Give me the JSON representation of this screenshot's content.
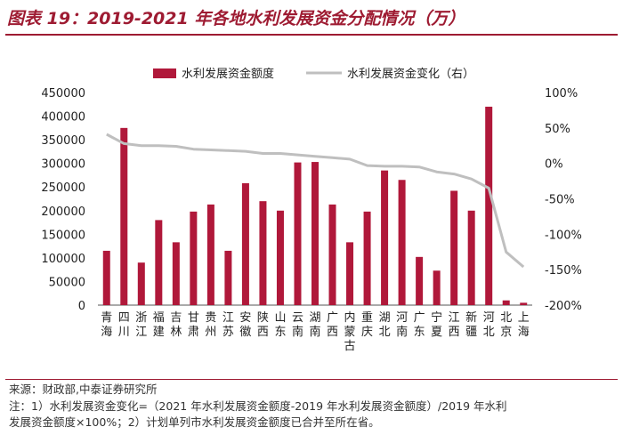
{
  "title": "图表 19：2019-2021 年各地水利发展资金分配情况（万）",
  "footer": {
    "source": "来源：财政部,中泰证券研究所",
    "note_line1": "注：1）水利发展资金变化=（2021 年水利发展资金额度-2019 年水利发展资金额度）/2019 年水利",
    "note_line2": "发展资金额度×100%；2）计划单列市水利发展资金额度已合并至所在省。"
  },
  "colors": {
    "bar": "#b0183a",
    "line": "#bfbfbf",
    "title": "#9e1b32"
  },
  "chart_data": {
    "type": "bar+line",
    "categories": [
      "青海",
      "四川",
      "浙江",
      "福建",
      "吉林",
      "甘肃",
      "贵州",
      "江苏",
      "安徽",
      "陕西",
      "山东",
      "云南",
      "湖南",
      "广西",
      "内蒙古",
      "重庆",
      "湖北",
      "河南",
      "广东",
      "宁夏",
      "江西",
      "新疆",
      "河北",
      "北京",
      "上海"
    ],
    "series": [
      {
        "name": "水利发展资金额度",
        "type": "bar",
        "axis": "left",
        "values": [
          115000,
          375000,
          90000,
          180000,
          133000,
          198000,
          213000,
          115000,
          258000,
          220000,
          200000,
          302000,
          303000,
          213000,
          133000,
          198000,
          285000,
          265000,
          102000,
          73000,
          242000,
          200000,
          420000,
          10000,
          5000
        ]
      },
      {
        "name": "水利发展资金变化（右）",
        "type": "line",
        "axis": "right",
        "values": [
          41,
          28,
          25,
          25,
          24,
          20,
          19,
          18,
          17,
          14,
          14,
          12,
          10,
          8,
          6,
          -3,
          -4,
          -4,
          -5,
          -12,
          -15,
          -22,
          -35,
          -125,
          -146
        ]
      }
    ],
    "y_left": {
      "min": 0,
      "max": 450000,
      "ticks": [
        "0",
        "50000",
        "100000",
        "150000",
        "200000",
        "250000",
        "300000",
        "350000",
        "400000",
        "450000"
      ]
    },
    "y_right": {
      "min": -200,
      "max": 100,
      "ticks": [
        "-200%",
        "-150%",
        "-100%",
        "-50%",
        "0%",
        "50%",
        "100%"
      ]
    },
    "legend": [
      "水利发展资金额度",
      "水利发展资金变化（右）"
    ]
  }
}
